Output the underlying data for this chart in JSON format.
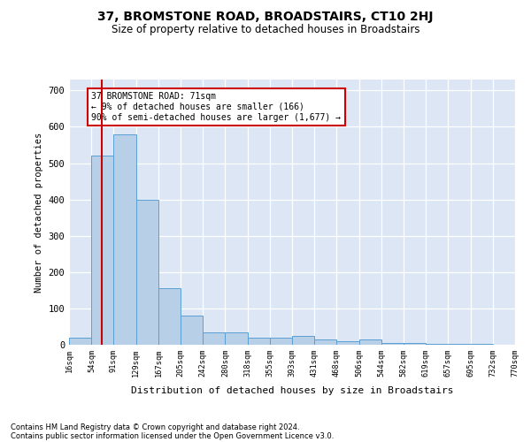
{
  "title": "37, BROMSTONE ROAD, BROADSTAIRS, CT10 2HJ",
  "subtitle": "Size of property relative to detached houses in Broadstairs",
  "xlabel": "Distribution of detached houses by size in Broadstairs",
  "ylabel": "Number of detached properties",
  "bar_color": "#b8cfe8",
  "bar_edge_color": "#5a9fd4",
  "background_color": "#dce6f5",
  "bin_edges": [
    16,
    54,
    91,
    129,
    167,
    205,
    242,
    280,
    318,
    355,
    393,
    431,
    468,
    506,
    544,
    582,
    619,
    657,
    695,
    732,
    770
  ],
  "bar_heights": [
    20,
    520,
    580,
    400,
    155,
    80,
    35,
    35,
    20,
    20,
    25,
    15,
    10,
    15,
    5,
    5,
    3,
    2,
    2,
    1
  ],
  "ylim": [
    0,
    730
  ],
  "yticks": [
    0,
    100,
    200,
    300,
    400,
    500,
    600,
    700
  ],
  "red_line_x": 71,
  "annotation_line1": "37 BROMSTONE ROAD: 71sqm",
  "annotation_line2": "← 9% of detached houses are smaller (166)",
  "annotation_line3": "90% of semi-detached houses are larger (1,677) →",
  "annotation_box_color": "#ffffff",
  "annotation_edge_color": "#cc0000",
  "footnote1": "Contains HM Land Registry data © Crown copyright and database right 2024.",
  "footnote2": "Contains public sector information licensed under the Open Government Licence v3.0."
}
